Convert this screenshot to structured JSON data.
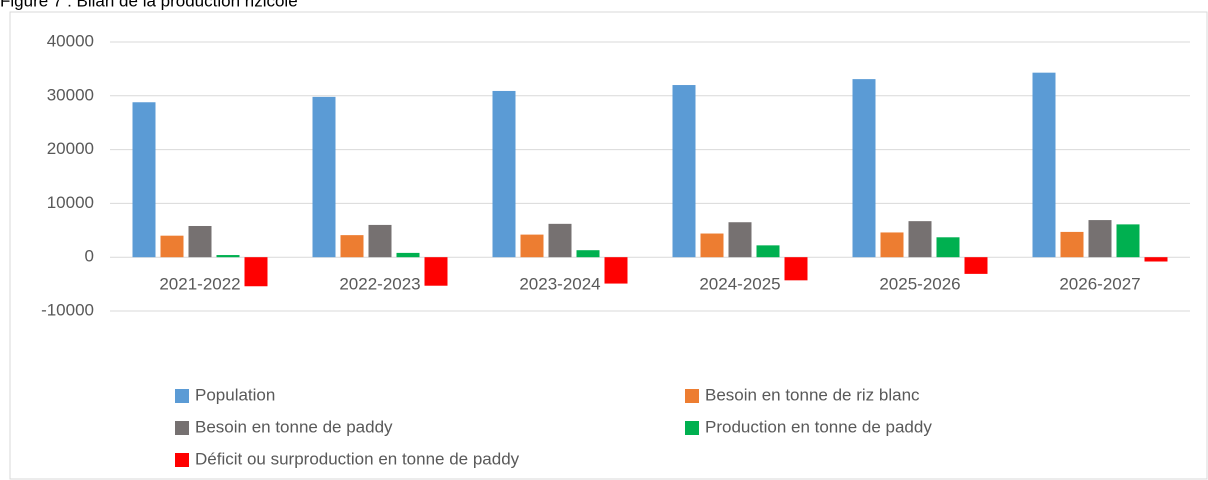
{
  "chart_data": {
    "type": "bar",
    "title": "Figure 7 : Bilan de la production rizicole",
    "categories": [
      "2021-2022",
      "2022-2023",
      "2023-2024",
      "2024-2025",
      "2025-2026",
      "2026-2027"
    ],
    "series": [
      {
        "name": "Population",
        "color": "#5b9bd5",
        "values": [
          28800,
          29800,
          30900,
          32000,
          33100,
          34300
        ]
      },
      {
        "name": "Besoin en tonne de riz blanc",
        "color": "#ed7d31",
        "values": [
          4000,
          4100,
          4200,
          4400,
          4600,
          4700
        ]
      },
      {
        "name": "Besoin en tonne de paddy",
        "color": "#767171",
        "values": [
          5800,
          6000,
          6200,
          6500,
          6700,
          6900
        ]
      },
      {
        "name": "Production en tonne de paddy",
        "color": "#00b050",
        "values": [
          400,
          800,
          1300,
          2200,
          3700,
          6100
        ]
      },
      {
        "name": "Déficit ou surproduction en tonne de paddy",
        "color": "#ff0000",
        "values": [
          -5400,
          -5300,
          -4900,
          -4300,
          -3100,
          -800
        ]
      }
    ],
    "ylim": [
      -10000,
      40000
    ],
    "yticks": [
      -10000,
      0,
      10000,
      20000,
      30000,
      40000
    ],
    "grid": true,
    "legend": "bottom"
  }
}
